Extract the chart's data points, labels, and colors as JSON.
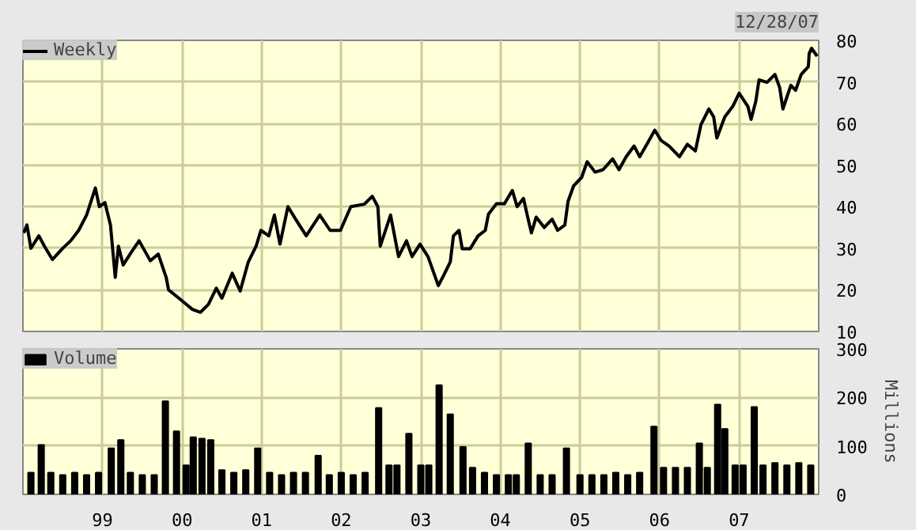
{
  "chart_data": [
    {
      "type": "line",
      "annotations": [
        "12/28/07"
      ],
      "legend": "top left",
      "grid": true,
      "tick_labels": "y",
      "xlim": [
        1998,
        2008
      ],
      "xticks": [
        {
          "value": 1999,
          "label": null
        },
        {
          "value": 2000,
          "label": null
        },
        {
          "value": 2001,
          "label": null
        },
        {
          "value": 2002,
          "label": null
        },
        {
          "value": 2003,
          "label": null
        },
        {
          "value": 2004,
          "label": null
        },
        {
          "value": 2005,
          "label": null
        },
        {
          "value": 2006,
          "label": null
        },
        {
          "value": 2007,
          "label": null
        }
      ],
      "ylim": [
        10,
        80
      ],
      "yticks": [
        10,
        20,
        30,
        40,
        50,
        60,
        70,
        80
      ],
      "x": [
        1998.01,
        1998.05,
        1998.1,
        1998.2,
        1998.27,
        1998.37,
        1998.5,
        1998.6,
        1998.7,
        1998.8,
        1998.91,
        1998.96,
        1999.03,
        1999.1,
        1999.16,
        1999.2,
        1999.26,
        1999.36,
        1999.46,
        1999.6,
        1999.7,
        1999.8,
        1999.83,
        1999.96,
        2000.13,
        2000.23,
        2000.33,
        2000.43,
        2000.5,
        2000.63,
        2000.73,
        2000.83,
        2000.93,
        2000.99,
        2001.09,
        2001.16,
        2001.23,
        2001.33,
        2001.43,
        2001.56,
        2001.73,
        2001.86,
        2001.99,
        2002.12,
        2002.29,
        2002.39,
        2002.46,
        2002.49,
        2002.62,
        2002.72,
        2002.82,
        2002.89,
        2002.99,
        2003.09,
        2003.22,
        2003.29,
        2003.37,
        2003.41,
        2003.48,
        2003.52,
        2003.62,
        2003.72,
        2003.81,
        2003.85,
        2003.95,
        2004.05,
        2004.15,
        2004.21,
        2004.29,
        2004.35,
        2004.39,
        2004.45,
        2004.55,
        2004.65,
        2004.72,
        2004.81,
        2004.85,
        2004.92,
        2005.02,
        2005.09,
        2005.19,
        2005.29,
        2005.41,
        2005.49,
        2005.58,
        2005.68,
        2005.75,
        2005.85,
        2005.94,
        2006.02,
        2006.12,
        2006.25,
        2006.35,
        2006.45,
        2006.52,
        2006.62,
        2006.68,
        2006.72,
        2006.82,
        2006.92,
        2007.0,
        2007.11,
        2007.15,
        2007.21,
        2007.25,
        2007.35,
        2007.45,
        2007.51,
        2007.55,
        2007.65,
        2007.71,
        2007.78,
        2007.87,
        2007.88,
        2007.91,
        2007.98
      ],
      "series": [
        {
          "name": "Weekly",
          "color": "#000000",
          "values": [
            33.7,
            35.6,
            30,
            33,
            30.5,
            27.3,
            30,
            31.8,
            34.3,
            38,
            44.5,
            40,
            41,
            35.6,
            23,
            30.5,
            26,
            29,
            31.8,
            27,
            28.6,
            23,
            20,
            18,
            15.3,
            14.6,
            16.5,
            20.4,
            18,
            24,
            19.7,
            26.6,
            30.5,
            34.3,
            33,
            38,
            31,
            40,
            36.9,
            33,
            38,
            34.3,
            34.3,
            40,
            40.6,
            42.5,
            40,
            30.5,
            38,
            28,
            31.8,
            28,
            31,
            28,
            21,
            23.6,
            26.7,
            33,
            34.3,
            29.9,
            29.9,
            33,
            34.3,
            38.2,
            40.7,
            40.7,
            43.9,
            40,
            42,
            36.9,
            33.7,
            37.5,
            35,
            37,
            34.3,
            35.6,
            41.3,
            45,
            47,
            50.8,
            48.3,
            48.9,
            51.5,
            48.9,
            52,
            54.6,
            52,
            55.3,
            58.4,
            55.9,
            54.6,
            52,
            55,
            53.4,
            59.7,
            63.5,
            61.6,
            56.5,
            61.6,
            64.1,
            67.3,
            64.1,
            61,
            65.4,
            70.5,
            69.9,
            71.8,
            68.6,
            63.5,
            69.2,
            68,
            71.8,
            73.7,
            76.8,
            78.1,
            76.2
          ]
        }
      ]
    },
    {
      "type": "bar",
      "ylabel": "Millions",
      "legend": "top left",
      "grid": true,
      "xlim": [
        1998,
        2008
      ],
      "xticks": [
        {
          "value": 1999,
          "label": "99"
        },
        {
          "value": 2000,
          "label": "00"
        },
        {
          "value": 2001,
          "label": "01"
        },
        {
          "value": 2002,
          "label": "02"
        },
        {
          "value": 2003,
          "label": "03"
        },
        {
          "value": 2004,
          "label": "04"
        },
        {
          "value": 2005,
          "label": "05"
        },
        {
          "value": 2006,
          "label": "06"
        },
        {
          "value": 2007,
          "label": "07"
        }
      ],
      "ylim": [
        0,
        300
      ],
      "yticks": [
        0,
        100,
        200,
        300
      ],
      "x": [
        1998.1,
        1998.23,
        1998.35,
        1998.5,
        1998.65,
        1998.8,
        1998.95,
        1999.11,
        1999.23,
        1999.35,
        1999.5,
        1999.65,
        1999.79,
        1999.93,
        2000.05,
        2000.14,
        2000.25,
        2000.36,
        2000.5,
        2000.65,
        2000.8,
        2000.95,
        2001.1,
        2001.25,
        2001.4,
        2001.55,
        2001.71,
        2001.85,
        2002.0,
        2002.15,
        2002.3,
        2002.47,
        2002.6,
        2002.7,
        2002.85,
        2003.0,
        2003.1,
        2003.23,
        2003.37,
        2003.53,
        2003.65,
        2003.8,
        2003.95,
        2004.1,
        2004.2,
        2004.35,
        2004.5,
        2004.65,
        2004.83,
        2005.0,
        2005.15,
        2005.3,
        2005.45,
        2005.6,
        2005.75,
        2005.93,
        2006.05,
        2006.2,
        2006.35,
        2006.5,
        2006.6,
        2006.73,
        2006.82,
        2006.95,
        2007.05,
        2007.19,
        2007.3,
        2007.45,
        2007.6,
        2007.75,
        2007.9
      ],
      "series": [
        {
          "name": "Volume",
          "color": "#000000",
          "values": [
            45,
            102,
            45,
            40,
            45,
            40,
            45,
            95,
            112,
            45,
            40,
            40,
            192,
            130,
            60,
            118,
            115,
            112,
            50,
            45,
            50,
            95,
            45,
            40,
            45,
            45,
            80,
            40,
            45,
            40,
            45,
            178,
            60,
            60,
            125,
            60,
            60,
            225,
            165,
            98,
            55,
            45,
            40,
            40,
            40,
            105,
            40,
            40,
            95,
            40,
            40,
            40,
            45,
            40,
            45,
            140,
            55,
            55,
            55,
            105,
            55,
            185,
            135,
            60,
            60,
            180,
            60,
            65,
            60,
            65,
            60
          ]
        }
      ]
    }
  ]
}
